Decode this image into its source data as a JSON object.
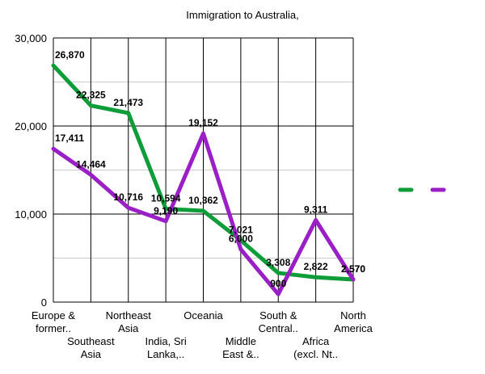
{
  "chart_data": {
    "type": "line",
    "title": "Immigration to Australia,",
    "xlabel": "",
    "ylabel": "",
    "ylim": [
      0,
      30000
    ],
    "yticks": [
      0,
      10000,
      20000,
      30000
    ],
    "ytick_labels": [
      "0",
      "10,000",
      "20,000",
      "30,000"
    ],
    "categories": [
      [
        "Europe &",
        "former.."
      ],
      [
        "Southeast",
        "Asia"
      ],
      [
        "Northeast",
        "Asia"
      ],
      [
        "India, Sri",
        "Lanka,.."
      ],
      [
        "Oceania"
      ],
      [
        "Middle",
        "East &.."
      ],
      [
        "South &",
        "Central.."
      ],
      [
        "Africa",
        "(excl. Nt.."
      ],
      [
        "North",
        "America"
      ]
    ],
    "series": [
      {
        "color": "#0f9d3a",
        "values": [
          26870,
          22325,
          21473,
          10594,
          10362,
          7021,
          3308,
          2822,
          2570
        ],
        "labels": [
          "26,870",
          "22,325",
          "21,473",
          "10,594",
          "10,362",
          "7,021",
          "3,308",
          "2,822",
          "2,570"
        ]
      },
      {
        "color": "#9b1fc6",
        "values": [
          17411,
          14464,
          10716,
          9190,
          19152,
          6000,
          900,
          9311,
          2570
        ],
        "labels": [
          "17,411",
          "14,464",
          "10,716",
          "9,190",
          "19,152",
          "6,000",
          "900",
          "9,311",
          "2,570"
        ]
      }
    ],
    "grid": true,
    "legend": "right"
  }
}
